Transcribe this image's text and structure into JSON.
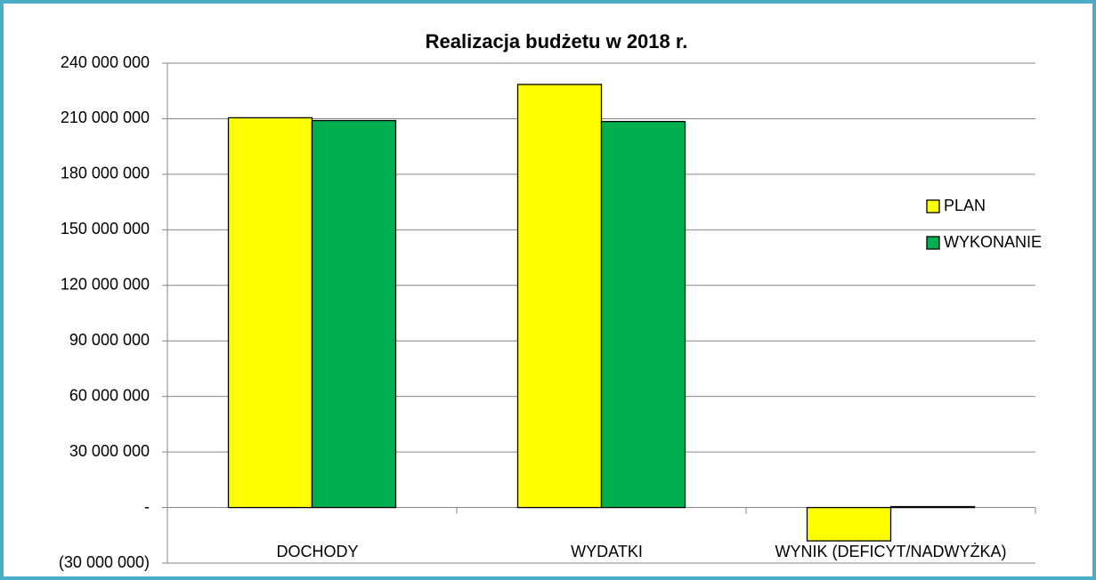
{
  "chart_data": {
    "type": "bar",
    "title": "Realizacja budżetu w 2018 r.",
    "categories": [
      "DOCHODY",
      "WYDATKI",
      "WYNIK (DEFICYT/NADWYŻKA)"
    ],
    "series": [
      {
        "name": "PLAN",
        "color": "#ffff00",
        "values": [
          210500000,
          228500000,
          -18000000
        ]
      },
      {
        "name": "WYKONANIE",
        "color": "#00b050",
        "values": [
          209000000,
          208500000,
          500000
        ]
      }
    ],
    "ylim": [
      -30000000,
      240000000
    ],
    "yticks": [
      {
        "value": -30000000,
        "label": "(30 000 000)"
      },
      {
        "value": 0,
        "label": "-"
      },
      {
        "value": 30000000,
        "label": "30 000 000"
      },
      {
        "value": 60000000,
        "label": "60 000 000"
      },
      {
        "value": 90000000,
        "label": "90 000 000"
      },
      {
        "value": 120000000,
        "label": "120 000 000"
      },
      {
        "value": 150000000,
        "label": "150 000 000"
      },
      {
        "value": 180000000,
        "label": "180 000 000"
      },
      {
        "value": 210000000,
        "label": "210 000 000"
      },
      {
        "value": 240000000,
        "label": "240 000 000"
      }
    ],
    "grid": true,
    "legend": "right"
  }
}
